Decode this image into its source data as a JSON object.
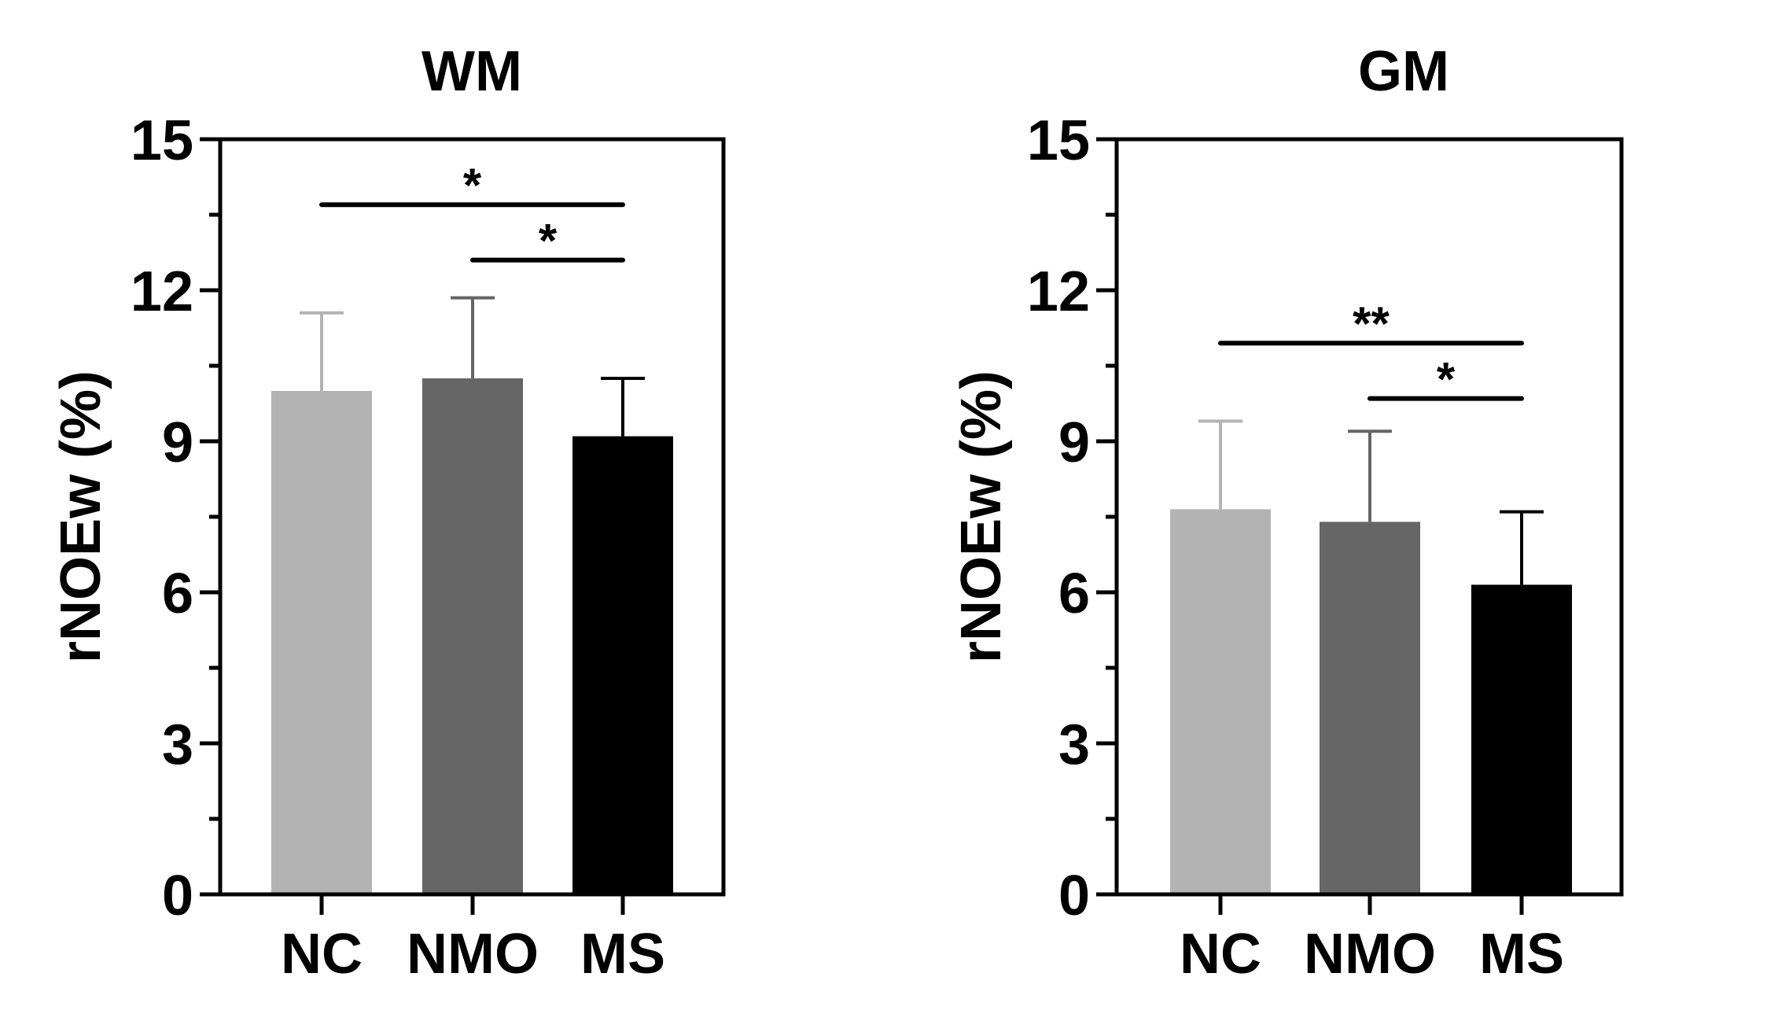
{
  "chart_data": [
    {
      "type": "bar",
      "title": "WM",
      "ylabel": "rNOEw (%)",
      "xlabel": "",
      "categories": [
        "NC",
        "NMO",
        "MS"
      ],
      "values": [
        10.0,
        10.25,
        9.1
      ],
      "errors": [
        1.55,
        1.6,
        1.15
      ],
      "colors": [
        "#b3b3b3",
        "#666666",
        "#000000"
      ],
      "ylim": [
        0,
        15
      ],
      "yticks": [
        "0",
        "3",
        "6",
        "9",
        "12",
        "15"
      ],
      "significance": [
        {
          "from": 0,
          "to": 2,
          "label": "*",
          "y": 13.7
        },
        {
          "from": 1,
          "to": 2,
          "label": "*",
          "y": 12.6
        }
      ]
    },
    {
      "type": "bar",
      "title": "GM",
      "ylabel": "rNOEw (%)",
      "xlabel": "",
      "categories": [
        "NC",
        "NMO",
        "MS"
      ],
      "values": [
        7.65,
        7.4,
        6.15
      ],
      "errors": [
        1.75,
        1.8,
        1.45
      ],
      "colors": [
        "#b3b3b3",
        "#666666",
        "#000000"
      ],
      "ylim": [
        0,
        15
      ],
      "yticks": [
        "0",
        "3",
        "6",
        "9",
        "12",
        "15"
      ],
      "significance": [
        {
          "from": 0,
          "to": 2,
          "label": "**",
          "y": 10.95
        },
        {
          "from": 1,
          "to": 2,
          "label": "*",
          "y": 9.85
        }
      ]
    }
  ]
}
